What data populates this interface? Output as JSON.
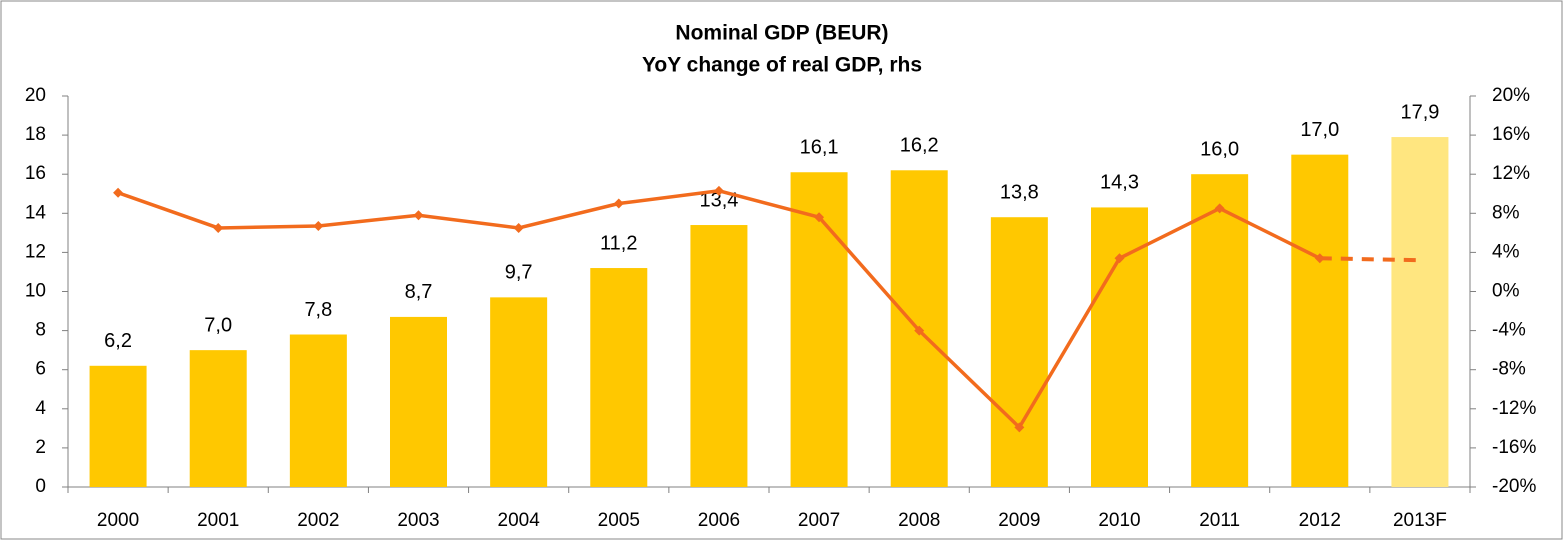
{
  "chart_data": {
    "type": "bar_line",
    "title": "Nominal GDP (BEUR)",
    "subtitle": "YoY change of real GDP, rhs",
    "categories": [
      "2000",
      "2001",
      "2002",
      "2003",
      "2004",
      "2005",
      "2006",
      "2007",
      "2008",
      "2009",
      "2010",
      "2011",
      "2012",
      "2013F"
    ],
    "series": [
      {
        "type": "bar",
        "colors": [
          "#FFC800",
          "#FFC800",
          "#FFC800",
          "#FFC800",
          "#FFC800",
          "#FFC800",
          "#FFC800",
          "#FFC800",
          "#FFC800",
          "#FFC800",
          "#FFC800",
          "#FFC800",
          "#FFC800",
          "#FFE680"
        ],
        "values": [
          6.2,
          7.0,
          7.8,
          8.7,
          9.7,
          11.2,
          13.4,
          16.1,
          16.2,
          13.8,
          14.3,
          16.0,
          17.0,
          17.9
        ],
        "value_labels": [
          "6,2",
          "7,0",
          "7,8",
          "8,7",
          "9,7",
          "11,2",
          "13,4",
          "16,1",
          "16,2",
          "13,8",
          "14,3",
          "16,0",
          "17,0",
          "17,9"
        ]
      },
      {
        "type": "line",
        "axis": "y2",
        "color": "#F26B1D",
        "dash": false,
        "markers": true,
        "values": [
          10.1,
          6.5,
          6.7,
          7.8,
          6.5,
          9.0,
          10.3,
          7.6,
          -4.0,
          -13.9,
          3.4,
          8.5,
          3.4,
          null
        ]
      },
      {
        "type": "line",
        "axis": "y2",
        "color": "#F26B1D",
        "dash": true,
        "markers": false,
        "values": [
          null,
          null,
          null,
          null,
          null,
          null,
          null,
          null,
          null,
          null,
          null,
          null,
          3.4,
          3.2
        ]
      }
    ],
    "ylim": [
      0,
      20
    ],
    "yticks": [
      0,
      2,
      4,
      6,
      8,
      10,
      12,
      14,
      16,
      18,
      20
    ],
    "y2lim": [
      -20,
      20
    ],
    "y2ticks": [
      {
        "value": -20,
        "label": "-20%"
      },
      {
        "value": -16,
        "label": "-16%"
      },
      {
        "value": -12,
        "label": "-12%"
      },
      {
        "value": -8,
        "label": "-8%"
      },
      {
        "value": -4,
        "label": "-4%"
      },
      {
        "value": 0,
        "label": "0%"
      },
      {
        "value": 4,
        "label": "4%"
      },
      {
        "value": 8,
        "label": "8%"
      },
      {
        "value": 12,
        "label": "12%"
      },
      {
        "value": 16,
        "label": "16%"
      },
      {
        "value": 20,
        "label": "20%"
      }
    ],
    "grid": false
  }
}
